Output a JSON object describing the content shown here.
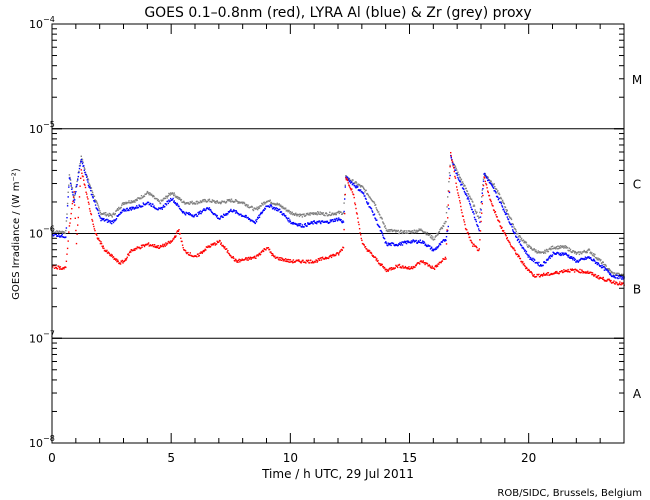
{
  "chart_data": {
    "type": "scatter",
    "title": "GOES 0.1–0.8nm (red), LYRA Al (blue) & Zr (grey) proxy",
    "xlabel": "Time / h UTC, 29 Jul 2011",
    "ylabel": "GOES Irradiance / (W m⁻²)",
    "xlim": [
      0,
      24
    ],
    "ylim": [
      1e-08,
      0.0001
    ],
    "yscale": "log",
    "x_ticks": [
      "0",
      "5",
      "10",
      "15",
      "20"
    ],
    "y_ticks": [
      {
        "base": "10",
        "exp": "-8",
        "value": 1e-08
      },
      {
        "base": "10",
        "exp": "-7",
        "value": 1e-07
      },
      {
        "base": "10",
        "exp": "-6",
        "value": 1e-06
      },
      {
        "base": "10",
        "exp": "-5",
        "value": 1e-05
      },
      {
        "base": "10",
        "exp": "-4",
        "value": 0.0001
      }
    ],
    "flare_classes": [
      {
        "label": "A",
        "value": 3e-08
      },
      {
        "label": "B",
        "value": 3e-07
      },
      {
        "label": "C",
        "value": 3e-06
      },
      {
        "label": "M",
        "value": 3e-05
      }
    ],
    "reference_lines": [
      1e-07,
      1e-06,
      1e-05
    ],
    "series": [
      {
        "name": "LYRA Zr proxy",
        "color": "#808080",
        "points": [
          [
            0,
            1.05e-06
          ],
          [
            0.55,
            1.05e-06
          ],
          [
            0.7,
            3.7e-06
          ],
          [
            0.9,
            2.2e-06
          ],
          [
            1.2,
            5.5e-06
          ],
          [
            1.5,
            3.2e-06
          ],
          [
            2,
            1.6e-06
          ],
          [
            2.5,
            1.5e-06
          ],
          [
            3,
            2e-06
          ],
          [
            3.5,
            2.1e-06
          ],
          [
            4,
            2.5e-06
          ],
          [
            4.5,
            2e-06
          ],
          [
            5,
            2.5e-06
          ],
          [
            5.5,
            2e-06
          ],
          [
            6,
            2e-06
          ],
          [
            6.5,
            2.1e-06
          ],
          [
            7,
            2e-06
          ],
          [
            7.5,
            2.1e-06
          ],
          [
            8,
            2e-06
          ],
          [
            8.5,
            1.7e-06
          ],
          [
            9,
            2.1e-06
          ],
          [
            9.5,
            1.9e-06
          ],
          [
            10,
            1.6e-06
          ],
          [
            10.5,
            1.5e-06
          ],
          [
            11,
            1.6e-06
          ],
          [
            11.5,
            1.55e-06
          ],
          [
            12,
            1.6e-06
          ],
          [
            12.2,
            1.6e-06
          ],
          [
            12.3,
            3.5e-06
          ],
          [
            13,
            2.8e-06
          ],
          [
            13.5,
            2e-06
          ],
          [
            14,
            1.1e-06
          ],
          [
            14.5,
            1.05e-06
          ],
          [
            15,
            1.05e-06
          ],
          [
            15.5,
            1.1e-06
          ],
          [
            16,
            9e-07
          ],
          [
            16.5,
            1.3e-06
          ],
          [
            16.7,
            5.5e-06
          ],
          [
            17,
            3.8e-06
          ],
          [
            17.5,
            2.3e-06
          ],
          [
            17.9,
            1.4e-06
          ],
          [
            18.1,
            3.8e-06
          ],
          [
            18.5,
            3e-06
          ],
          [
            19,
            1.8e-06
          ],
          [
            19.5,
            1e-06
          ],
          [
            20,
            7.5e-07
          ],
          [
            20.5,
            6.5e-07
          ],
          [
            21,
            7.5e-07
          ],
          [
            21.5,
            7.5e-07
          ],
          [
            22,
            6.5e-07
          ],
          [
            22.5,
            7e-07
          ],
          [
            23,
            5.5e-07
          ],
          [
            23.5,
            4.2e-07
          ],
          [
            24,
            4e-07
          ]
        ]
      },
      {
        "name": "LYRA Al proxy",
        "color": "#0000ff",
        "points": [
          [
            0,
            1e-06
          ],
          [
            0.55,
            9.5e-07
          ],
          [
            0.7,
            3.5e-06
          ],
          [
            0.9,
            2e-06
          ],
          [
            1.2,
            5.3e-06
          ],
          [
            1.5,
            3e-06
          ],
          [
            2,
            1.4e-06
          ],
          [
            2.5,
            1.3e-06
          ],
          [
            3,
            1.7e-06
          ],
          [
            3.5,
            1.8e-06
          ],
          [
            4,
            2e-06
          ],
          [
            4.5,
            1.7e-06
          ],
          [
            5,
            2.2e-06
          ],
          [
            5.5,
            1.6e-06
          ],
          [
            6,
            1.5e-06
          ],
          [
            6.5,
            1.8e-06
          ],
          [
            7,
            1.4e-06
          ],
          [
            7.5,
            1.7e-06
          ],
          [
            8,
            1.5e-06
          ],
          [
            8.5,
            1.3e-06
          ],
          [
            9,
            1.9e-06
          ],
          [
            9.5,
            1.7e-06
          ],
          [
            10,
            1.3e-06
          ],
          [
            10.5,
            1.2e-06
          ],
          [
            11,
            1.3e-06
          ],
          [
            11.5,
            1.3e-06
          ],
          [
            12,
            1.4e-06
          ],
          [
            12.2,
            1.3e-06
          ],
          [
            12.3,
            3.5e-06
          ],
          [
            13,
            2.5e-06
          ],
          [
            13.5,
            1.5e-06
          ],
          [
            14,
            8e-07
          ],
          [
            14.5,
            8e-07
          ],
          [
            15,
            8.5e-07
          ],
          [
            15.5,
            8.5e-07
          ],
          [
            16,
            7e-07
          ],
          [
            16.5,
            9e-07
          ],
          [
            16.6,
            1.2e-06
          ],
          [
            16.7,
            5.5e-06
          ],
          [
            17,
            3.5e-06
          ],
          [
            17.5,
            2e-06
          ],
          [
            17.9,
            1.1e-06
          ],
          [
            18.1,
            3.8e-06
          ],
          [
            18.5,
            2.7e-06
          ],
          [
            19,
            1.6e-06
          ],
          [
            19.5,
            9e-07
          ],
          [
            20,
            6e-07
          ],
          [
            20.5,
            5e-07
          ],
          [
            21,
            6.5e-07
          ],
          [
            21.5,
            6.5e-07
          ],
          [
            22,
            5.5e-07
          ],
          [
            22.5,
            6e-07
          ],
          [
            23,
            5e-07
          ],
          [
            23.5,
            4e-07
          ],
          [
            24,
            3.8e-07
          ]
        ]
      },
      {
        "name": "GOES 0.1-0.8nm",
        "color": "#ff0000",
        "points": [
          [
            0,
            4.9e-07
          ],
          [
            0.55,
            4.7e-07
          ],
          [
            0.7,
            1.2e-06
          ],
          [
            0.9,
            2.5e-06
          ],
          [
            1,
            8e-07
          ],
          [
            1.2,
            4.2e-06
          ],
          [
            1.5,
            2e-06
          ],
          [
            1.8,
            1e-06
          ],
          [
            2.2,
            7e-07
          ],
          [
            2.8,
            5.3e-07
          ],
          [
            3,
            5.5e-07
          ],
          [
            3.3,
            7e-07
          ],
          [
            4,
            8e-07
          ],
          [
            4.5,
            7.5e-07
          ],
          [
            5,
            8.5e-07
          ],
          [
            5.3,
            1.1e-06
          ],
          [
            5.5,
            7e-07
          ],
          [
            6,
            6e-07
          ],
          [
            6.5,
            7.5e-07
          ],
          [
            7,
            8.5e-07
          ],
          [
            7.3,
            7e-07
          ],
          [
            7.7,
            5.5e-07
          ],
          [
            8.5,
            6e-07
          ],
          [
            9,
            7.5e-07
          ],
          [
            9.3,
            6e-07
          ],
          [
            10,
            5.5e-07
          ],
          [
            11,
            5.5e-07
          ],
          [
            11.5,
            6e-07
          ],
          [
            12,
            6.5e-07
          ],
          [
            12.2,
            7.5e-07
          ],
          [
            12.3,
            3.5e-06
          ],
          [
            12.6,
            2.5e-06
          ],
          [
            13,
            8e-07
          ],
          [
            13.5,
            6e-07
          ],
          [
            14,
            4.5e-07
          ],
          [
            14.5,
            5e-07
          ],
          [
            15,
            4.7e-07
          ],
          [
            15.5,
            5.5e-07
          ],
          [
            16,
            4.7e-07
          ],
          [
            16.5,
            6e-07
          ],
          [
            16.7,
            6e-06
          ],
          [
            17,
            2.5e-06
          ],
          [
            17.3,
            1.2e-06
          ],
          [
            17.6,
            8e-07
          ],
          [
            17.9,
            7e-07
          ],
          [
            18.1,
            3.5e-06
          ],
          [
            18.4,
            2e-06
          ],
          [
            18.8,
            1.2e-06
          ],
          [
            19.2,
            8e-07
          ],
          [
            19.8,
            5e-07
          ],
          [
            20.2,
            4e-07
          ],
          [
            21,
            4.2e-07
          ],
          [
            21.5,
            4.5e-07
          ],
          [
            22,
            4.5e-07
          ],
          [
            22.5,
            4.3e-07
          ],
          [
            23,
            3.8e-07
          ],
          [
            23.5,
            3.5e-07
          ],
          [
            24,
            3.3e-07
          ]
        ]
      }
    ],
    "credit": "ROB/SIDC, Brussels, Belgium"
  }
}
